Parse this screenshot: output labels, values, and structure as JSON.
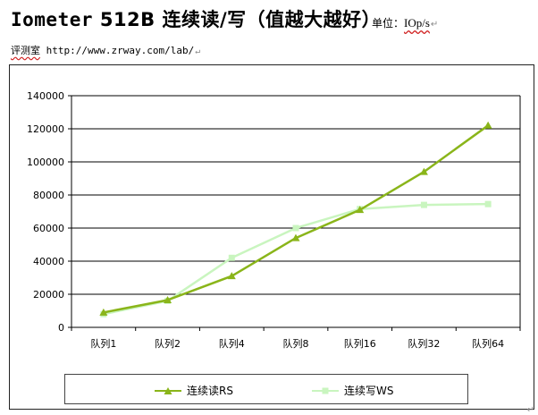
{
  "header": {
    "title_brand": "Iometer",
    "title_rest": " 512B 连续读/写（值越大越好）",
    "unit_label": "单位：",
    "unit_value": "IOp/s",
    "source_label": "评测室",
    "source_url": "http://www.zrway.com/lab/"
  },
  "chart_data": {
    "type": "line",
    "categories": [
      "队列1",
      "队列2",
      "队列4",
      "队列8",
      "队列16",
      "队列32",
      "队列64"
    ],
    "ylim": [
      0,
      140000
    ],
    "yticks": [
      0,
      20000,
      40000,
      60000,
      80000,
      100000,
      120000,
      140000
    ],
    "grid": true,
    "legend_position": "bottom",
    "series": [
      {
        "name": "连续读RS",
        "values": [
          9000,
          16500,
          31000,
          54000,
          71000,
          94000,
          122000
        ],
        "color": "#8ab51a",
        "marker": "triangle"
      },
      {
        "name": "连续写WS",
        "values": [
          8000,
          16000,
          42000,
          60000,
          71500,
          74000,
          74500
        ],
        "color": "#c9f5bf",
        "marker": "square"
      }
    ]
  }
}
